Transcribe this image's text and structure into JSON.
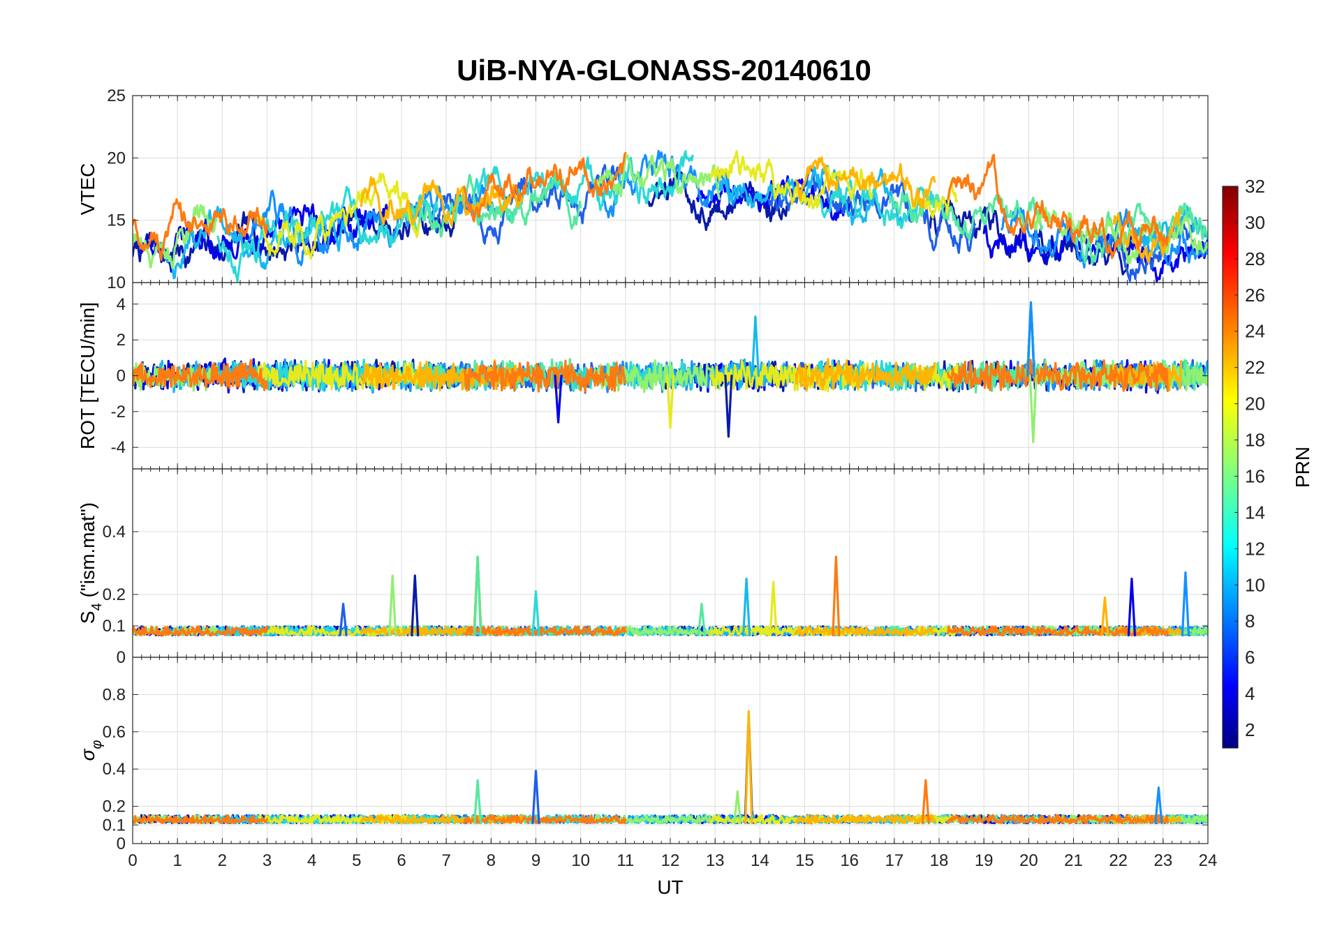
{
  "chart_data": {
    "type": "line",
    "title": "UiB-NYA-GLONASS-20140610",
    "xlabel": "UT",
    "xlim": [
      0,
      24
    ],
    "x_ticks": [
      0,
      1,
      2,
      3,
      4,
      5,
      6,
      7,
      8,
      9,
      10,
      11,
      12,
      13,
      14,
      15,
      16,
      17,
      18,
      19,
      20,
      21,
      22,
      23,
      24
    ],
    "grid": true,
    "panels": [
      {
        "id": "vtec",
        "ylabel": "VTEC",
        "ylim": [
          10,
          25
        ],
        "y_ticks": [
          10,
          15,
          20,
          25
        ],
        "baseline": 15.6,
        "noise": 1.6,
        "spikes": []
      },
      {
        "id": "rot",
        "ylabel": "ROT [TECU/min]",
        "ylim": [
          -5.2,
          5.2
        ],
        "y_ticks": [
          -4,
          -2,
          0,
          2,
          4
        ],
        "baseline": 0,
        "noise": 0.6,
        "spikes": [
          {
            "x": 20.05,
            "y": 4.1
          },
          {
            "x": 20.1,
            "y": -3.7
          },
          {
            "x": 13.3,
            "y": -3.4
          },
          {
            "x": 13.9,
            "y": 3.3
          },
          {
            "x": 12.0,
            "y": -2.9
          },
          {
            "x": 9.5,
            "y": -2.6
          }
        ]
      },
      {
        "id": "s4",
        "ylabel": "S4 (\"ism.mat\")",
        "ylim": [
          0,
          0.6
        ],
        "y_ticks": [
          0,
          0.1,
          0.2,
          0.4
        ],
        "baseline": 0.07,
        "noise": 0.02,
        "spikes": [
          {
            "x": 7.7,
            "y": 0.32
          },
          {
            "x": 15.7,
            "y": 0.32
          },
          {
            "x": 23.5,
            "y": 0.27
          },
          {
            "x": 5.8,
            "y": 0.26
          },
          {
            "x": 6.3,
            "y": 0.26
          },
          {
            "x": 13.7,
            "y": 0.25
          },
          {
            "x": 14.3,
            "y": 0.24
          },
          {
            "x": 22.3,
            "y": 0.25
          },
          {
            "x": 9.0,
            "y": 0.21
          },
          {
            "x": 21.7,
            "y": 0.19
          },
          {
            "x": 4.7,
            "y": 0.17
          },
          {
            "x": 12.7,
            "y": 0.17
          }
        ]
      },
      {
        "id": "sigma",
        "ylabel": "σφ",
        "ylim": [
          0,
          1
        ],
        "y_ticks": [
          0,
          0.1,
          0.2,
          0.4,
          0.6,
          0.8
        ],
        "baseline": 0.11,
        "noise": 0.03,
        "spikes": [
          {
            "x": 13.75,
            "y": 0.71
          },
          {
            "x": 9.0,
            "y": 0.39
          },
          {
            "x": 7.7,
            "y": 0.34
          },
          {
            "x": 17.7,
            "y": 0.34
          },
          {
            "x": 22.9,
            "y": 0.3
          },
          {
            "x": 13.5,
            "y": 0.28
          }
        ]
      }
    ],
    "colorbar": {
      "label": "PRN",
      "range": [
        1,
        32
      ],
      "ticks": [
        2,
        4,
        6,
        8,
        10,
        12,
        14,
        16,
        18,
        20,
        22,
        24,
        26,
        28,
        30,
        32
      ],
      "colormap": "jet"
    },
    "series": [
      {
        "prn": 2,
        "color": "#0a1aa8",
        "tracks": [
          [
            0,
            7.2
          ],
          [
            11.5,
            14.6
          ],
          [
            17.8,
            22.5
          ]
        ]
      },
      {
        "prn": 4,
        "color": "#0000ee",
        "tracks": [
          [
            0.2,
            5.7
          ],
          [
            12.6,
            16.0
          ],
          [
            19.0,
            24.0
          ]
        ]
      },
      {
        "prn": 7,
        "color": "#1f5fe8",
        "tracks": [
          [
            6.6,
            10.9
          ],
          [
            14.2,
            18.8
          ],
          [
            21.5,
            23.7
          ]
        ]
      },
      {
        "prn": 9,
        "color": "#1590ff",
        "tracks": [
          [
            2.6,
            8.1
          ],
          [
            10.5,
            13.6
          ],
          [
            19.4,
            24.0
          ]
        ]
      },
      {
        "prn": 11,
        "color": "#16b8f0",
        "tracks": [
          [
            0.6,
            4.8
          ],
          [
            13.1,
            17.2
          ],
          [
            22.3,
            24.0
          ]
        ]
      },
      {
        "prn": 13,
        "color": "#2ad9d6",
        "tracks": [
          [
            1.9,
            6.8
          ],
          [
            7.6,
            12.5
          ],
          [
            15.3,
            18.1
          ]
        ]
      },
      {
        "prn": 15,
        "color": "#55e8a0",
        "tracks": [
          [
            6.0,
            10.0
          ],
          [
            16.9,
            20.3
          ],
          [
            21.0,
            24.0
          ]
        ]
      },
      {
        "prn": 17,
        "color": "#90f070",
        "tracks": [
          [
            0,
            1.9
          ],
          [
            10.3,
            13.1
          ],
          [
            20.1,
            24.0
          ]
        ]
      },
      {
        "prn": 20,
        "color": "#e6ea1c",
        "tracks": [
          [
            2.8,
            6.4
          ],
          [
            12.9,
            16.5
          ],
          [
            17.4,
            18.4
          ]
        ]
      },
      {
        "prn": 22,
        "color": "#ffb400",
        "tracks": [
          [
            5.1,
            8.7
          ],
          [
            14.8,
            17.9
          ],
          [
            21.9,
            23.4
          ]
        ]
      },
      {
        "prn": 24,
        "color": "#ff7a10",
        "tracks": [
          [
            0,
            3.0
          ],
          [
            7.4,
            11.0
          ],
          [
            18.2,
            23.1
          ]
        ]
      }
    ]
  }
}
